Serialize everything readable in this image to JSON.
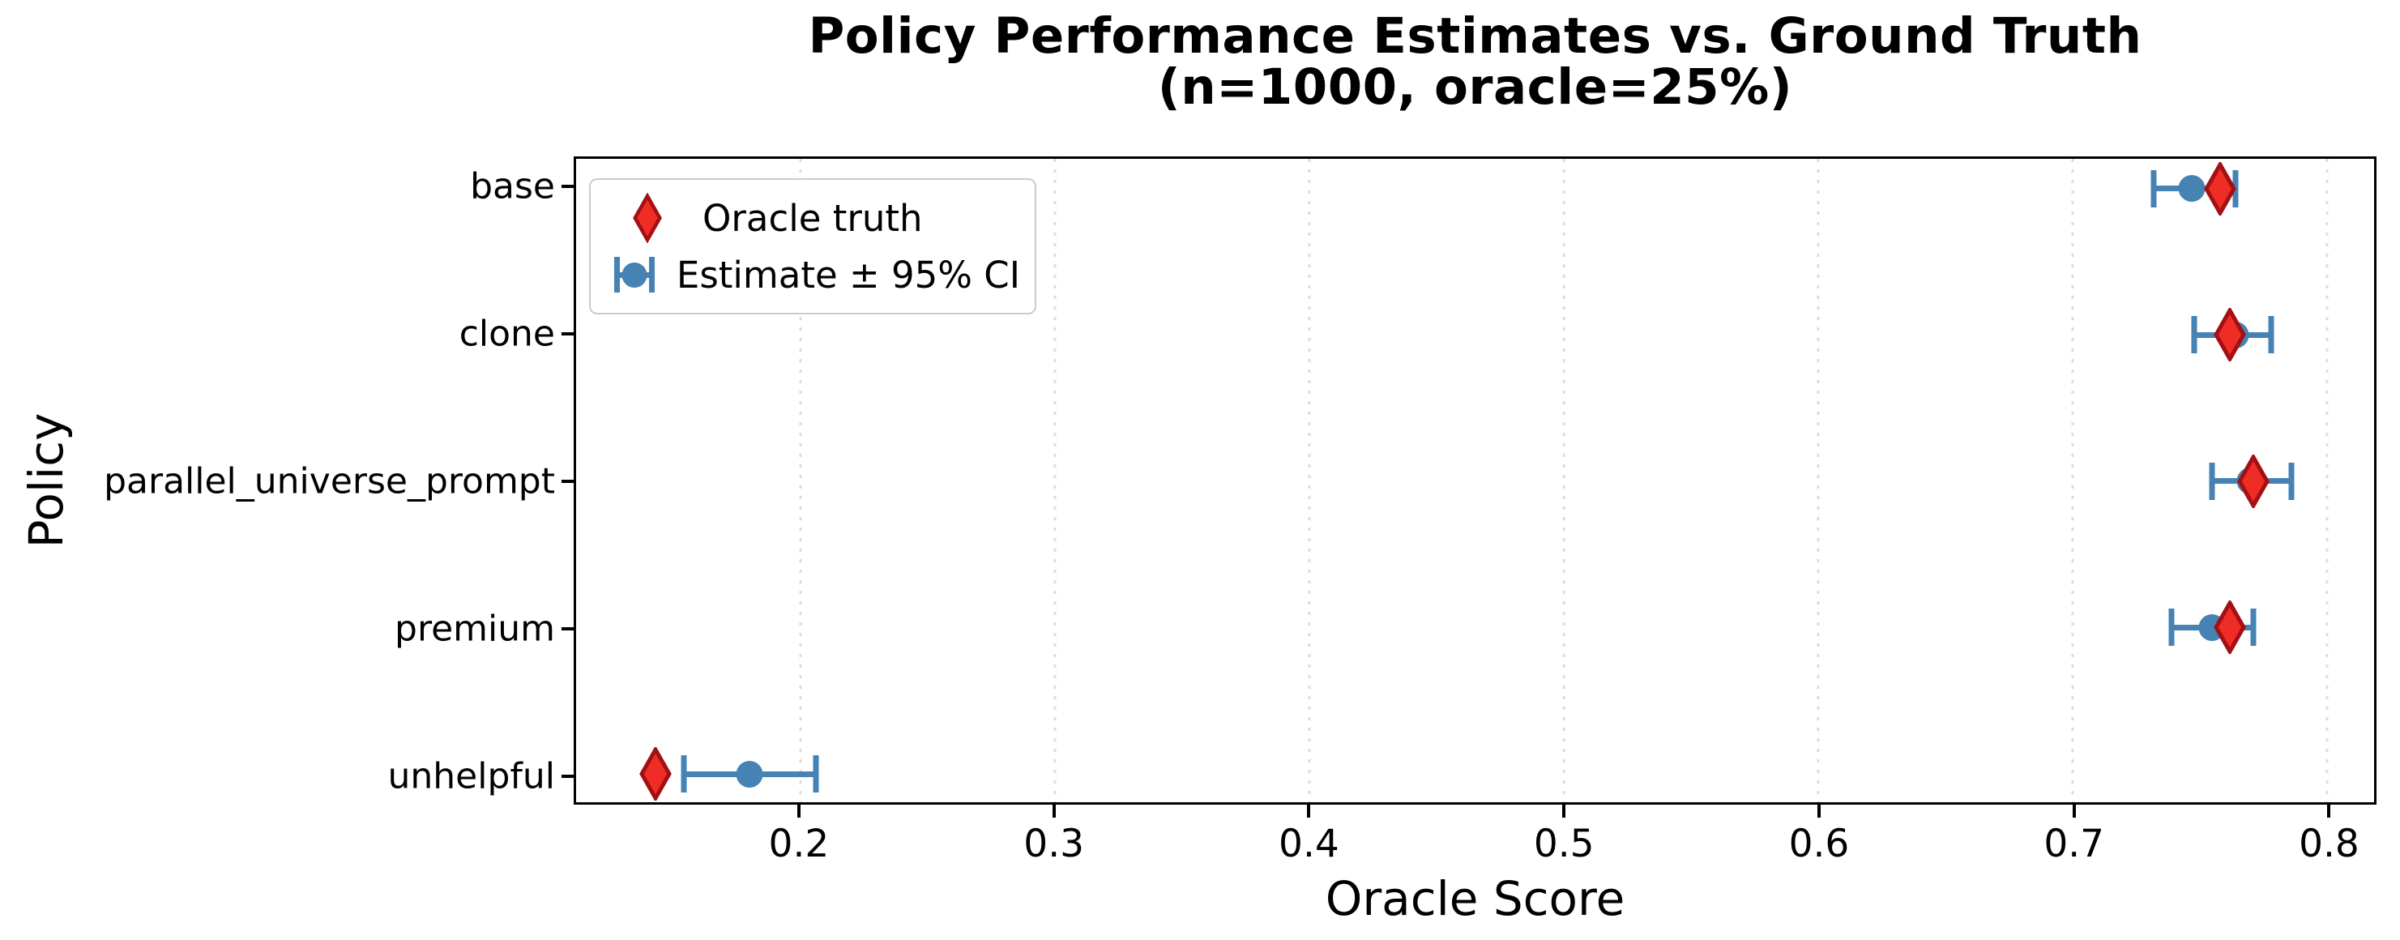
{
  "chart_data": {
    "type": "scatter",
    "variant": "horizontal-errorbar",
    "title": "Policy Performance Estimates vs. Ground Truth",
    "subtitle": "(n=1000, oracle=25%)",
    "xlabel": "Oracle Score",
    "ylabel": "Policy",
    "xlim": [
      0.1117,
      0.8186
    ],
    "xticks": [
      0.2,
      0.3,
      0.4,
      0.5,
      0.6,
      0.7,
      0.8
    ],
    "xtick_labels": [
      "0.2",
      "0.3",
      "0.4",
      "0.5",
      "0.6",
      "0.7",
      "0.8"
    ],
    "grid": "vertical-dotted",
    "categories": [
      "base",
      "clone",
      "parallel_universe_prompt",
      "premium",
      "unhelpful"
    ],
    "series": [
      {
        "name": "Oracle truth",
        "marker": "thin-diamond",
        "fill_color": "#ef2d26",
        "edge_color": "#a31014",
        "values": [
          0.758,
          0.762,
          0.771,
          0.762,
          0.143
        ]
      },
      {
        "name": "Estimate ± 95% CI",
        "marker": "circle-with-errorbar",
        "color": "#4682b4",
        "values": [
          0.747,
          0.764,
          0.77,
          0.755,
          0.18
        ],
        "ci_low": [
          0.732,
          0.748,
          0.755,
          0.739,
          0.154
        ],
        "ci_high": [
          0.764,
          0.778,
          0.786,
          0.771,
          0.206
        ]
      }
    ],
    "legend": {
      "position": "upper-left",
      "entries": [
        {
          "label": "Oracle truth",
          "marker": "red-diamond"
        },
        {
          "label": "Estimate ± 95% CI",
          "marker": "blue-circle-errorbar"
        }
      ]
    }
  },
  "colors": {
    "estimate_blue": "#4682b4",
    "truth_red_fill": "#ef2d26",
    "truth_red_edge": "#a31014",
    "gridline": "#dcdcdc"
  }
}
